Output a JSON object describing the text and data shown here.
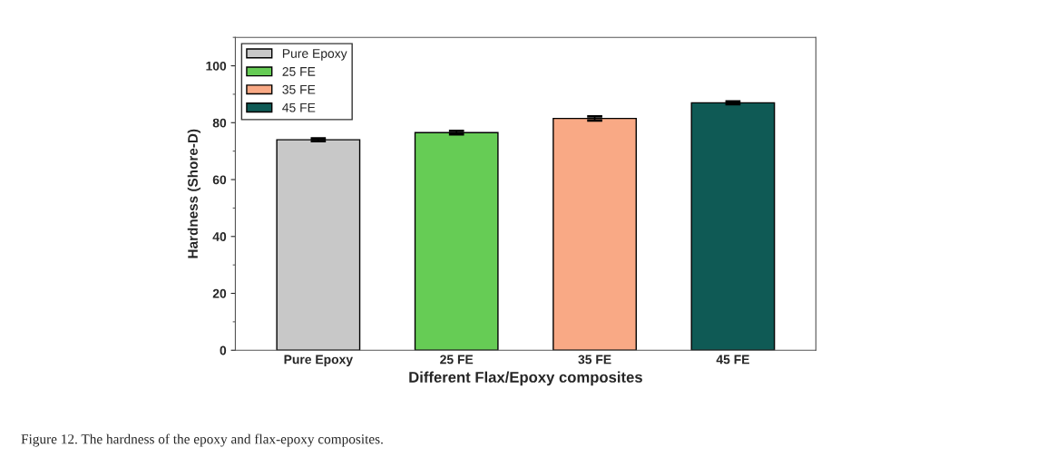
{
  "chart_data": {
    "type": "bar",
    "categories": [
      "Pure Epoxy",
      "25 FE",
      "35 FE",
      "45 FE"
    ],
    "series": [
      {
        "name": "Pure Epoxy",
        "color": "#c8c8c8",
        "values": [
          74,
          null,
          null,
          null
        ],
        "errors": [
          0.5,
          null,
          null,
          null
        ]
      },
      {
        "name": "25 FE",
        "color": "#66cc55",
        "values": [
          null,
          76.5,
          null,
          null
        ],
        "errors": [
          null,
          0.6,
          null,
          null
        ]
      },
      {
        "name": "35 FE",
        "color": "#f9a985",
        "values": [
          null,
          null,
          81.5,
          null
        ],
        "errors": [
          null,
          null,
          0.7,
          null
        ]
      },
      {
        "name": "45 FE",
        "color": "#0f5a55",
        "values": [
          null,
          null,
          null,
          87
        ],
        "errors": [
          null,
          null,
          null,
          0.5
        ]
      }
    ],
    "xlabel": "Different Flax/Epoxy composites",
    "ylabel": "Hardness (Shore-D)",
    "ylim": [
      0,
      110
    ],
    "yticks": [
      0,
      20,
      40,
      60,
      80,
      100
    ],
    "legend": "top left",
    "grid": false,
    "annotations": [
      "Figure 12. The hardness of the epoxy and flax-epoxy composites."
    ]
  }
}
